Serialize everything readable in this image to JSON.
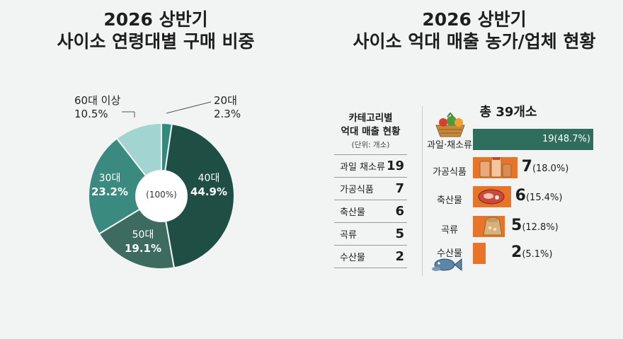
{
  "left_title": {
    "line1": "2026 상반기",
    "line2": "사이소 연령대별 구매 비중"
  },
  "right_title": {
    "line1": "2026 상반기",
    "line2": "사이소 억대 매출 농가/업체 현황"
  },
  "colors": {
    "20s": "#2e8b7f",
    "40s": "#1f4e45",
    "50s": "#3d6b60",
    "30s": "#3a8a80",
    "60s": "#a2d4d2",
    "bar_top": "#2f6e5d",
    "bar_rest": "#e8742a"
  },
  "chart_data": [
    {
      "type": "pie",
      "title": "2026 상반기 사이소 연령대별 구매 비중",
      "center_label": "(100%)",
      "slices": [
        {
          "label": "20대",
          "value": 2.3,
          "value_text": "2.3%"
        },
        {
          "label": "40대",
          "value": 44.9,
          "value_text": "44.9%"
        },
        {
          "label": "50대",
          "value": 19.1,
          "value_text": "19.1%"
        },
        {
          "label": "30대",
          "value": 23.2,
          "value_text": "23.2%"
        },
        {
          "label": "60대 이상",
          "value": 10.5,
          "value_text": "10.5%"
        }
      ]
    },
    {
      "type": "bar",
      "title": "2026 상반기 사이소 억대 매출 농가/업체 현황",
      "total_label": "총 39개소",
      "categories": [
        "과일·채소류",
        "가공식품",
        "축산물",
        "곡류",
        "수산물"
      ],
      "values": [
        19,
        7,
        6,
        5,
        2
      ],
      "percent_text": [
        "(48.7%)",
        "(18.0%)",
        "(15.4%)",
        "(12.8%)",
        "(5.1%)"
      ],
      "xlim": [
        0,
        19
      ]
    }
  ],
  "table": {
    "header_line1": "카테고리별",
    "header_line2": "억대 매출 현황",
    "unit": "(단위: 개소)",
    "rows": [
      {
        "name": "과일 채소류",
        "value": "19"
      },
      {
        "name": "가공식품",
        "value": "7"
      },
      {
        "name": "축산물",
        "value": "6"
      },
      {
        "name": "곡류",
        "value": "5"
      },
      {
        "name": "수산물",
        "value": "2"
      }
    ]
  },
  "icons": [
    "vegetable-basket-icon",
    "processed-food-jars-icon",
    "meat-icon",
    "grain-sack-icon",
    "fish-icon"
  ]
}
